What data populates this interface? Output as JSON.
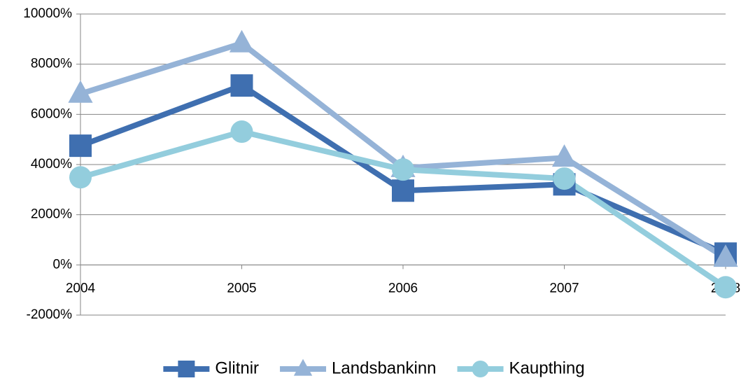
{
  "chart_data": {
    "type": "line",
    "categories": [
      "2004",
      "2005",
      "2006",
      "2007",
      "2008"
    ],
    "series": [
      {
        "name": "Glitnir",
        "color": "#3f6fb0",
        "marker": "square",
        "values": [
          4750,
          7150,
          2960,
          3210,
          450
        ]
      },
      {
        "name": "Landsbankinn",
        "color": "#95b3d7",
        "marker": "triangle",
        "values": [
          6820,
          8830,
          3860,
          4270,
          280
        ]
      },
      {
        "name": "Kaupthing",
        "color": "#93cddd",
        "marker": "circle",
        "values": [
          3490,
          5310,
          3800,
          3440,
          -890
        ]
      }
    ],
    "ylim": [
      -2000,
      10000
    ],
    "yticks": [
      {
        "value": -2000,
        "label": "-2000%"
      },
      {
        "value": 0,
        "label": "0%"
      },
      {
        "value": 2000,
        "label": "2000%"
      },
      {
        "value": 4000,
        "label": "4000%"
      },
      {
        "value": 6000,
        "label": "6000%"
      },
      {
        "value": 8000,
        "label": "8000%"
      },
      {
        "value": 10000,
        "label": "10000%"
      }
    ],
    "grid": true,
    "legend": "bottom"
  }
}
